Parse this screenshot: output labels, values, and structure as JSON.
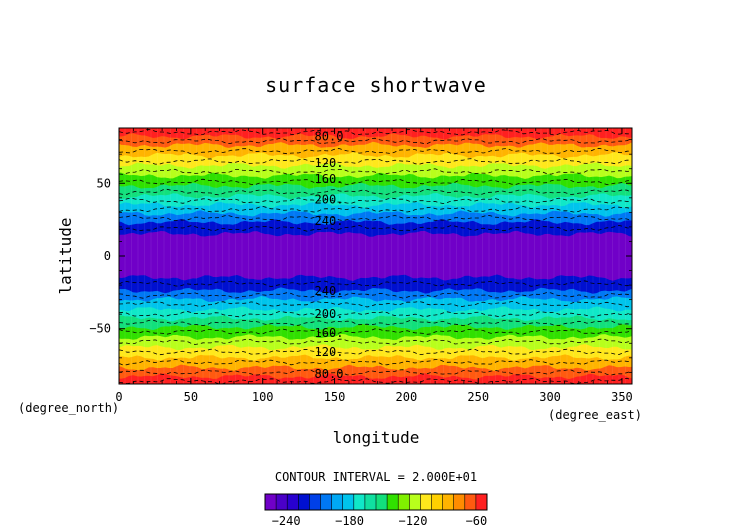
{
  "chart_data": {
    "type": "heatmap",
    "title": "surface shortwave",
    "xlabel": "longitude",
    "ylabel": "latitude",
    "x_unit": "(degree_east)",
    "y_unit": "(degree_north)",
    "xlim": [
      0,
      357
    ],
    "ylim": [
      -88,
      88
    ],
    "xticks": [
      0,
      50,
      100,
      150,
      200,
      250,
      300,
      350
    ],
    "yticks": [
      -50,
      0,
      50
    ],
    "grid": false,
    "contour_interval_text": "CONTOUR INTERVAL = 2.000E+01",
    "contour_labels": [
      {
        "text": "80.0",
        "lon": 135,
        "lat": 82
      },
      {
        "text": "120.",
        "lon": 135,
        "lat": 64
      },
      {
        "text": "160.",
        "lon": 135,
        "lat": 53
      },
      {
        "text": "200.",
        "lon": 135,
        "lat": 39
      },
      {
        "text": "240.",
        "lon": 135,
        "lat": 24
      },
      {
        "text": "240.",
        "lon": 135,
        "lat": -24
      },
      {
        "text": "200.",
        "lon": 135,
        "lat": -40
      },
      {
        "text": "160.",
        "lon": 135,
        "lat": -53
      },
      {
        "text": "120.",
        "lon": 135,
        "lat": -66
      },
      {
        "text": "80.0",
        "lon": 135,
        "lat": -81
      }
    ],
    "bands": [
      {
        "lat": [
          82,
          88
        ],
        "value": -70,
        "color": "#ff2020"
      },
      {
        "lat": [
          76,
          82
        ],
        "value": -85,
        "color": "#ff5a10"
      },
      {
        "lat": [
          69,
          76
        ],
        "value": -100,
        "color": "#ffb400"
      },
      {
        "lat": [
          62,
          69
        ],
        "value": -115,
        "color": "#ffe81c"
      },
      {
        "lat": [
          55,
          62
        ],
        "value": -130,
        "color": "#b8ff1c"
      },
      {
        "lat": [
          48,
          55
        ],
        "value": -145,
        "color": "#30e000"
      },
      {
        "lat": [
          41,
          48
        ],
        "value": -160,
        "color": "#12e07c"
      },
      {
        "lat": [
          35,
          41
        ],
        "value": -175,
        "color": "#10e8c8"
      },
      {
        "lat": [
          29,
          35
        ],
        "value": -190,
        "color": "#00c4ec"
      },
      {
        "lat": [
          23,
          29
        ],
        "value": -205,
        "color": "#0078f4"
      },
      {
        "lat": [
          15,
          23
        ],
        "value": -220,
        "color": "#0010d0"
      },
      {
        "lat": [
          -15,
          15
        ],
        "value": -250,
        "color": "#7000c8"
      },
      {
        "lat": [
          -24,
          -15
        ],
        "value": -220,
        "color": "#0010d0"
      },
      {
        "lat": [
          -30,
          -24
        ],
        "value": -205,
        "color": "#0078f4"
      },
      {
        "lat": [
          -37,
          -30
        ],
        "value": -190,
        "color": "#00c4ec"
      },
      {
        "lat": [
          -43,
          -37
        ],
        "value": -175,
        "color": "#10e8c8"
      },
      {
        "lat": [
          -49,
          -43
        ],
        "value": -160,
        "color": "#12e07c"
      },
      {
        "lat": [
          -56,
          -49
        ],
        "value": -145,
        "color": "#30e000"
      },
      {
        "lat": [
          -63,
          -56
        ],
        "value": -130,
        "color": "#b8ff1c"
      },
      {
        "lat": [
          -70,
          -63
        ],
        "value": -115,
        "color": "#ffe81c"
      },
      {
        "lat": [
          -77,
          -70
        ],
        "value": -100,
        "color": "#ffb400"
      },
      {
        "lat": [
          -83,
          -77
        ],
        "value": -85,
        "color": "#ff5a10"
      },
      {
        "lat": [
          -88,
          -83
        ],
        "value": -70,
        "color": "#ff2020"
      }
    ],
    "dashed_contours_lat": [
      85,
      79,
      72,
      65,
      58,
      51,
      44,
      38,
      32,
      26,
      19,
      -19,
      -27,
      -33,
      -40,
      -46,
      -52,
      -59,
      -66,
      -73,
      -80,
      -86
    ],
    "colorbar": {
      "range": [
        -260,
        -50
      ],
      "tick_labels": [
        "-240",
        "-180",
        "-120",
        "-60"
      ],
      "tick_values": [
        -240,
        -180,
        -120,
        -60
      ],
      "colors": [
        "#7000c8",
        "#4a00c8",
        "#2800d0",
        "#0010d0",
        "#0040e8",
        "#0078f4",
        "#00a8f4",
        "#00c4ec",
        "#10e8c8",
        "#10e0a0",
        "#12e07c",
        "#30e000",
        "#80f000",
        "#b8ff1c",
        "#ffe81c",
        "#ffd000",
        "#ffb400",
        "#ff8c00",
        "#ff5a10",
        "#ff2020"
      ]
    }
  }
}
